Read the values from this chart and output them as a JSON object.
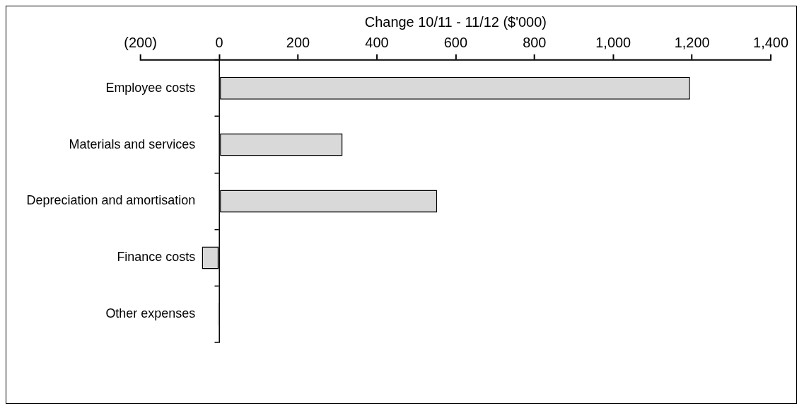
{
  "chart_data": {
    "type": "bar",
    "orientation": "horizontal",
    "xlabel": "Change 10/11 - 11/12 ($'000)",
    "categories": [
      "Employee costs",
      "Materials and services",
      "Depreciation and amortisation",
      "Finance costs",
      "Other expenses"
    ],
    "values": [
      1195,
      313,
      553,
      -44,
      -4
    ],
    "color": "#d9d9d9",
    "xlim": [
      -200,
      1400
    ],
    "xticks": [
      {
        "value": -200,
        "label": "(200)"
      },
      0,
      200,
      400,
      600,
      800,
      {
        "value": 1000,
        "label": "1,000"
      },
      {
        "value": 1200,
        "label": "1,200"
      },
      {
        "value": 1400,
        "label": "1,400"
      }
    ],
    "grid": false,
    "legend": false
  }
}
